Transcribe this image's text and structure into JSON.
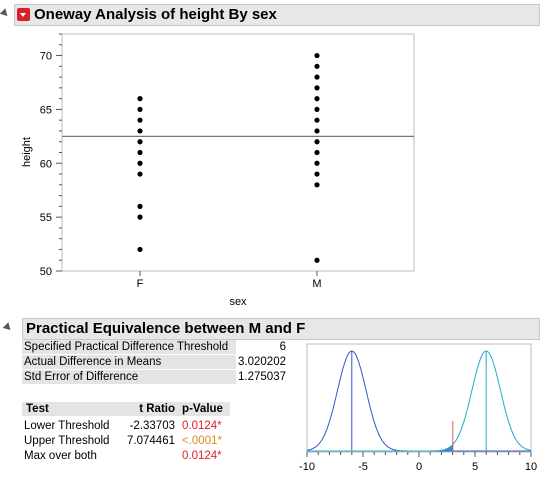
{
  "oneway": {
    "title": "Oneway Analysis of height By sex",
    "xlabel": "sex",
    "ylabel": "height"
  },
  "equivalence": {
    "title": "Practical Equivalence between M and F",
    "summary": [
      {
        "label": "Specified Practical Difference Threshold",
        "value": "6"
      },
      {
        "label": "Actual Difference in Means",
        "value": "3.020202"
      },
      {
        "label": "Std Error of Difference",
        "value": "1.275037"
      }
    ],
    "tests": {
      "headers": [
        "Test",
        "t Ratio",
        "p-Value"
      ],
      "rows": [
        {
          "test": "Lower Threshold",
          "t_ratio": "-2.33703",
          "p_value": "0.0124*",
          "p_color": "#e0202a"
        },
        {
          "test": "Upper Threshold",
          "t_ratio": "7.074461",
          "p_value": "<.0001*",
          "p_color": "#e08a1a"
        },
        {
          "test": "Max over both",
          "t_ratio": "",
          "p_value": "0.0124*",
          "p_color": "#e0202a"
        }
      ]
    }
  },
  "chart_data": [
    {
      "type": "scatter",
      "title": "Oneway Analysis of height By sex",
      "xlabel": "sex",
      "ylabel": "height",
      "categories": [
        "F",
        "M"
      ],
      "ylim": [
        50,
        72
      ],
      "yticks": [
        50,
        55,
        60,
        65,
        70
      ],
      "grand_mean": 62.5,
      "series": [
        {
          "name": "F",
          "values": [
            52,
            55,
            56,
            59,
            60,
            61,
            62,
            63,
            64,
            65,
            66
          ]
        },
        {
          "name": "M",
          "values": [
            51,
            58,
            59,
            60,
            61,
            62,
            63,
            64,
            65,
            66,
            67,
            68,
            69,
            70
          ]
        }
      ]
    },
    {
      "type": "line",
      "xlim": [
        -10,
        10
      ],
      "xticks": [
        -10,
        -5,
        0,
        5,
        10
      ],
      "threshold": 6,
      "difference": 3.020202,
      "std_error": 1.275037,
      "series": [
        {
          "name": "lower",
          "center": -6,
          "color": "#3355cc"
        },
        {
          "name": "upper",
          "center": 6,
          "color": "#22aacc"
        }
      ]
    }
  ]
}
